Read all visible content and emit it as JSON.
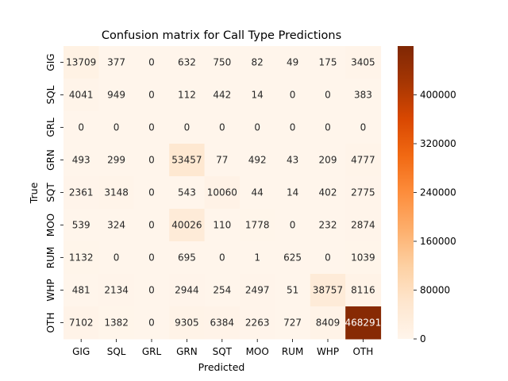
{
  "chart_data": {
    "type": "heatmap",
    "title": "Confusion matrix for Call Type Predictions",
    "xlabel": "Predicted",
    "ylabel": "True",
    "x_categories": [
      "GIG",
      "SQL",
      "GRL",
      "GRN",
      "SQT",
      "MOO",
      "RUM",
      "WHP",
      "OTH"
    ],
    "y_categories": [
      "GIG",
      "SQL",
      "GRL",
      "GRN",
      "SQT",
      "MOO",
      "RUM",
      "WHP",
      "OTH"
    ],
    "matrix": [
      [
        13709,
        377,
        0,
        632,
        750,
        82,
        49,
        175,
        3405
      ],
      [
        4041,
        949,
        0,
        112,
        442,
        14,
        0,
        0,
        383
      ],
      [
        0,
        0,
        0,
        0,
        0,
        0,
        0,
        0,
        0
      ],
      [
        493,
        299,
        0,
        53457,
        77,
        492,
        43,
        209,
        4777
      ],
      [
        2361,
        3148,
        0,
        543,
        10060,
        44,
        14,
        402,
        2775
      ],
      [
        539,
        324,
        0,
        40026,
        110,
        1778,
        0,
        232,
        2874
      ],
      [
        1132,
        0,
        0,
        695,
        0,
        1,
        625,
        0,
        1039
      ],
      [
        481,
        2134,
        0,
        2944,
        254,
        2497,
        51,
        38757,
        8116
      ],
      [
        7102,
        1382,
        0,
        9305,
        6384,
        2263,
        727,
        8409,
        468291
      ]
    ],
    "colormap": "Oranges",
    "color_low": "#fff5eb",
    "color_high": "#7f2704",
    "colorbar": {
      "range": [
        0,
        480000
      ],
      "ticks": [
        0,
        80000,
        160000,
        240000,
        320000,
        400000
      ]
    },
    "grid": false
  }
}
